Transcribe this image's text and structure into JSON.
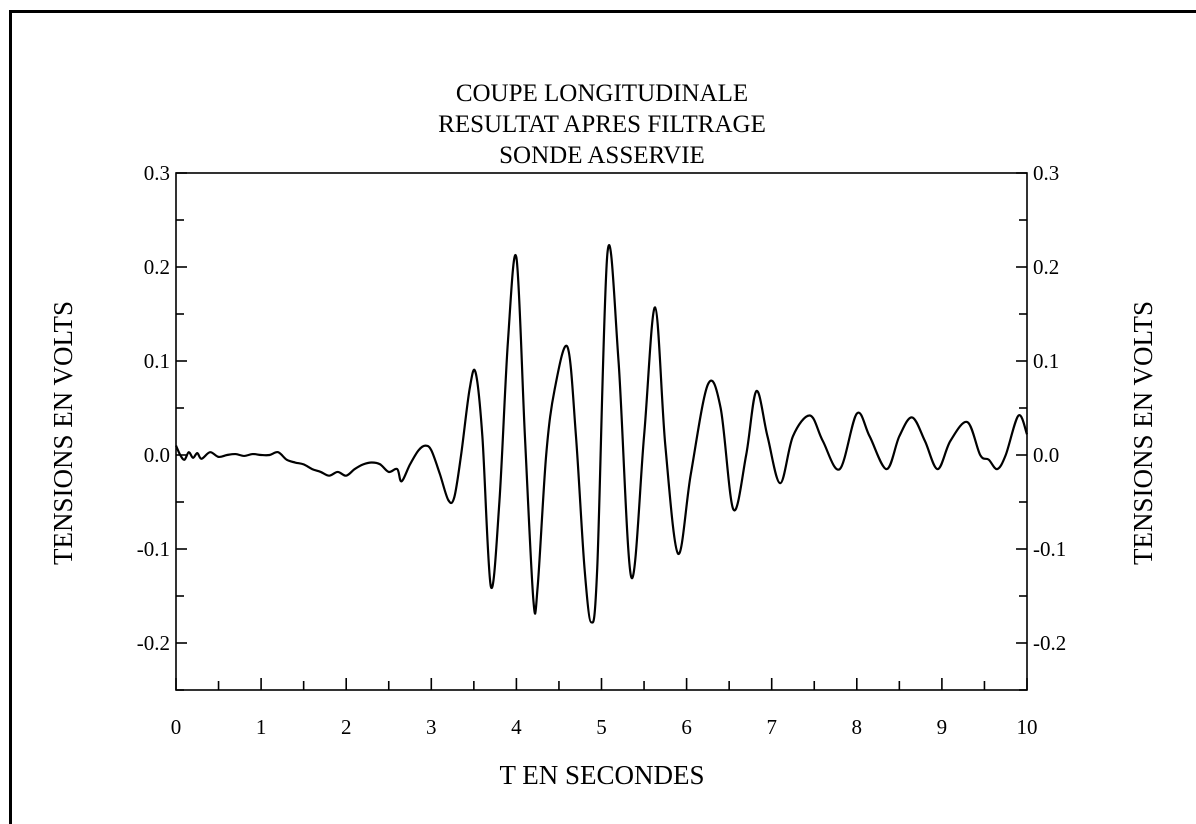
{
  "chart_data": {
    "type": "line",
    "title": [
      "COUPE LONGITUDINALE",
      "RESULTAT APRES FILTRAGE",
      "SONDE ASSERVIE"
    ],
    "xlabel": "T EN SECONDES",
    "ylabel": "TENSIONS EN VOLTS",
    "ylabel_right": "TENSIONS EN VOLTS",
    "xlim": [
      0,
      10
    ],
    "ylim": [
      -0.25,
      0.3
    ],
    "x_ticks": [
      "0",
      "1",
      "2",
      "3",
      "4",
      "5",
      "6",
      "7",
      "8",
      "9",
      "10"
    ],
    "y_ticks_left": [
      "0.3",
      "0.2",
      "0.1",
      "0.0",
      "-0.1",
      "-0.2"
    ],
    "y_ticks_right": [
      "0.3",
      "0.2",
      "0.1",
      "0.0",
      "-0.1",
      "-0.2"
    ],
    "y_tick_values": [
      0.3,
      0.2,
      0.1,
      0.0,
      -0.1,
      -0.2
    ],
    "grid": false,
    "series": [
      {
        "x": [
          0.0,
          0.05,
          0.1,
          0.15,
          0.2,
          0.25,
          0.3,
          0.4,
          0.5,
          0.6,
          0.7,
          0.8,
          0.9,
          1.0,
          1.1,
          1.2,
          1.3,
          1.4,
          1.5,
          1.6,
          1.7,
          1.8,
          1.9,
          2.0,
          2.1,
          2.2,
          2.3,
          2.4,
          2.5,
          2.6,
          2.65,
          2.75,
          2.85,
          2.93,
          3.0,
          3.1,
          3.2,
          3.27,
          3.35,
          3.45,
          3.52,
          3.6,
          3.7,
          3.8,
          3.9,
          4.0,
          4.1,
          4.2,
          4.25,
          4.35,
          4.45,
          4.6,
          4.7,
          4.8,
          4.88,
          4.95,
          5.07,
          5.2,
          5.35,
          5.5,
          5.63,
          5.75,
          5.9,
          6.05,
          6.25,
          6.4,
          6.55,
          6.7,
          6.82,
          6.95,
          7.1,
          7.25,
          7.45,
          7.6,
          7.8,
          8.0,
          8.15,
          8.35,
          8.5,
          8.65,
          8.8,
          8.95,
          9.1,
          9.3,
          9.45,
          9.55,
          9.65,
          9.75,
          9.9,
          10.0
        ],
        "y": [
          0.01,
          0.0,
          -0.005,
          0.003,
          -0.003,
          0.002,
          -0.004,
          0.003,
          -0.002,
          0.0,
          0.001,
          -0.001,
          0.001,
          0.0,
          0.0,
          0.003,
          -0.005,
          -0.008,
          -0.01,
          -0.015,
          -0.018,
          -0.022,
          -0.018,
          -0.022,
          -0.015,
          -0.01,
          -0.008,
          -0.01,
          -0.018,
          -0.015,
          -0.028,
          -0.01,
          0.005,
          0.01,
          0.005,
          -0.02,
          -0.048,
          -0.045,
          0.0,
          0.07,
          0.088,
          0.02,
          -0.14,
          -0.05,
          0.12,
          0.21,
          0.02,
          -0.155,
          -0.14,
          0.0,
          0.07,
          0.115,
          0.02,
          -0.12,
          -0.178,
          -0.12,
          0.215,
          0.1,
          -0.13,
          0.02,
          0.157,
          0.01,
          -0.105,
          -0.02,
          0.075,
          0.05,
          -0.058,
          0.0,
          0.068,
          0.02,
          -0.03,
          0.02,
          0.042,
          0.015,
          -0.015,
          0.044,
          0.02,
          -0.015,
          0.02,
          0.04,
          0.015,
          -0.015,
          0.015,
          0.035,
          0.0,
          -0.005,
          -0.015,
          0.0,
          0.042,
          0.022
        ]
      }
    ]
  }
}
